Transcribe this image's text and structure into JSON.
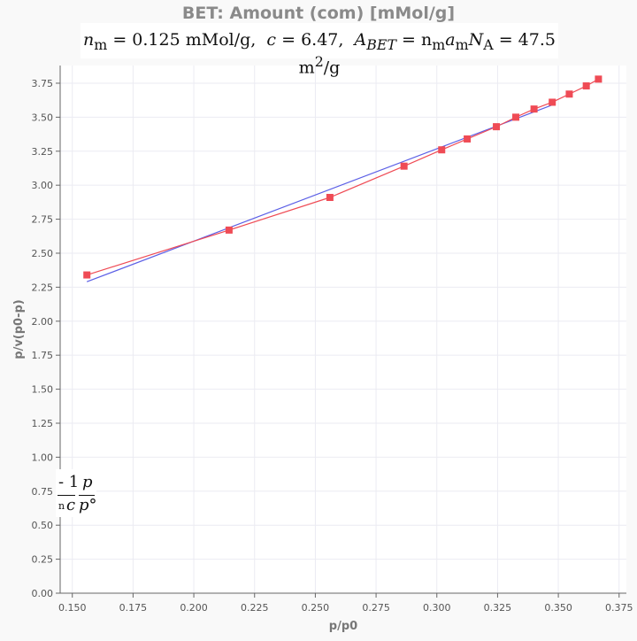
{
  "chart_data": {
    "type": "scatter",
    "title": "BET: Amount (com) [mMol/g]",
    "subtitle": {
      "nm_label": "n",
      "nm_sub": "m",
      "nm_value": "= 0.125 mMol/g,",
      "c_label": "c",
      "c_value": "= 6.47,",
      "a_label": "A",
      "a_sub": "BET",
      "a_eq": "= n",
      "a_eq_sub1": "m",
      "a_eq_a": "a",
      "a_eq_sub2": "m",
      "a_eq_N": "N",
      "a_eq_sub3": "A",
      "a_value": "= 47.5 m",
      "a_sup": "2",
      "a_unit": "/g"
    },
    "inset": {
      "num_left": "- 1",
      "num_right": "p",
      "den_left_sub": "n",
      "den_left": "c",
      "den_right": "p°"
    },
    "xlabel": "p/p0",
    "ylabel": "p/v(p0-p)",
    "xlim": [
      0.145,
      0.378
    ],
    "ylim": [
      0,
      3.88
    ],
    "xticks": [
      "0.150",
      "0.175",
      "0.200",
      "0.225",
      "0.250",
      "0.275",
      "0.300",
      "0.325",
      "0.350",
      "0.375"
    ],
    "yticks": [
      "0.00",
      "0.25",
      "0.50",
      "0.75",
      "1.00",
      "1.25",
      "1.50",
      "1.75",
      "2.00",
      "2.25",
      "2.50",
      "2.75",
      "3.00",
      "3.25",
      "3.50",
      "3.75"
    ],
    "grid": true,
    "series": [
      {
        "kind": "markers+line",
        "color": "#ef4b55",
        "x": [
          0.156,
          0.2145,
          0.256,
          0.2865,
          0.302,
          0.3125,
          0.3245,
          0.3325,
          0.34,
          0.3475,
          0.3545,
          0.3615,
          0.3665
        ],
        "y": [
          2.34,
          2.67,
          2.91,
          3.14,
          3.26,
          3.34,
          3.43,
          3.5,
          3.56,
          3.61,
          3.67,
          3.73,
          3.78
        ]
      },
      {
        "kind": "line",
        "color": "#5b5fe6",
        "x": [
          0.156,
          0.3475
        ],
        "y": [
          2.29,
          3.59
        ]
      }
    ]
  }
}
